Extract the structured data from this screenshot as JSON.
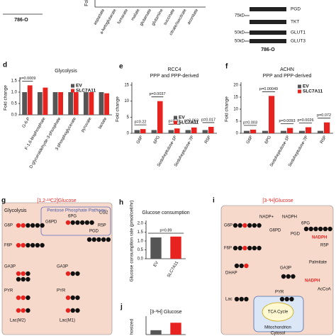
{
  "top": {
    "cell_line": "786-O",
    "ylabel_fragment": "Fol",
    "metabolites": [
      "aspartate",
      "a-ketoglutarate",
      "fumarate",
      "malate",
      "glutamate",
      "glutamine",
      "succinate",
      "citrate/isocitrate",
      "aconitate"
    ]
  },
  "blot": {
    "proteins": [
      "PGD",
      "TKT",
      "GLUT1",
      "GLUT3"
    ],
    "markers": [
      "75kD",
      "50kD",
      "50kD"
    ],
    "cell_line": "786-O"
  },
  "chart_data": [
    {
      "type": "bar",
      "panel": "d",
      "title": "Glycolysis",
      "ylabel": "Fold change",
      "categories": [
        "G-6-P",
        "F-1,6-bisphosphate",
        "D-glyceraldehyde-3-phosphate",
        "3-phosphoglycerate",
        "pyruvate",
        "lactate"
      ],
      "series": [
        {
          "name": "EV",
          "color": "#555555",
          "values": [
            1,
            1,
            1,
            1,
            1,
            1
          ]
        },
        {
          "name": "SLC7A11",
          "color": "#e8231f",
          "values": [
            1.3,
            1.2,
            1.0,
            1.0,
            1.0,
            0.95
          ]
        }
      ],
      "annotations": [
        "p=0.0009",
        null,
        null,
        null,
        null,
        null
      ],
      "ylim": [
        0,
        1.5
      ],
      "yticks": [
        {
          "value": 0,
          "label": "0.0"
        },
        0.5,
        {
          "value": 1,
          "label": "1.0"
        },
        1.5
      ],
      "legend": "upper right"
    },
    {
      "type": "bar",
      "panel": "e",
      "title": "RCC4",
      "subtitle": "PPP and PPP-derived",
      "ylabel": "Fold change",
      "categories": [
        "G6P",
        "6PG",
        "Sedoheptulose-1P",
        "Sedoheptulose-7P",
        "R5P"
      ],
      "series": [
        {
          "name": "EV",
          "color": "#555555",
          "values": [
            1,
            1,
            1,
            1,
            1
          ]
        },
        {
          "name": "SLC7A11",
          "color": "#e8231f",
          "values": [
            1.3,
            10,
            1.5,
            1.8,
            2.0
          ]
        }
      ],
      "annotations": [
        "p=0.22",
        "p=0.0037",
        "p=0.31",
        "p=0.063",
        "p=0.017"
      ],
      "ylim": [
        0,
        15
      ],
      "yticks": [
        0,
        5,
        10,
        15
      ],
      "legend": "upper right"
    },
    {
      "type": "bar",
      "panel": "f",
      "title": "ACHN",
      "subtitle": "PPP and PPP-derived",
      "ylabel": "Fold change",
      "categories": [
        "G6P",
        "6PG",
        "Sedoheptulose-1P",
        "Sedoheptulose-7P",
        "R5P"
      ],
      "series": [
        {
          "name": "EV",
          "color": "#555555",
          "values": [
            1,
            1,
            1,
            1,
            1
          ]
        },
        {
          "name": "SLC7A11",
          "color": "#e8231f",
          "values": [
            1.5,
            15.5,
            2.2,
            2.5,
            4.5
          ]
        }
      ],
      "annotations": [
        "p=0.003",
        "p=0.00049",
        "p=0.0093",
        "p=0.0026",
        "p=0.072"
      ],
      "ylim": [
        0,
        20
      ],
      "yticks": [
        0,
        5,
        10,
        15,
        20
      ],
      "legend": "upper right"
    },
    {
      "type": "bar",
      "panel": "h",
      "title": "Glucose consumption",
      "ylabel": "Glucose consumption rate (pmol/cell/hr)",
      "categories": [
        "EV",
        "SLC7A11"
      ],
      "values": [
        1.2,
        1.25
      ],
      "colors": [
        "#555555",
        "#e8231f"
      ],
      "annotations": [
        "p=0.89",
        null
      ],
      "ylim": [
        0,
        2
      ],
      "yticks": [
        {
          "value": 0,
          "label": "0.0"
        },
        0.5,
        {
          "value": 1,
          "label": "1.0"
        },
        1.5,
        {
          "value": 2,
          "label": "2.0"
        }
      ]
    },
    {
      "type": "bar",
      "panel": "j",
      "title": "[3-³H] Glucose",
      "ylabel": "hosized",
      "categories": [
        null,
        null
      ],
      "values": [
        7,
        19
      ],
      "colors": [
        "#555555",
        "#e8231f"
      ],
      "ylim": [
        0,
        25
      ]
    }
  ],
  "diagram_g": {
    "panel": "g",
    "title": "[1,2-¹³C2]Glucose",
    "box_title": "Pentose Phosphate Pathway",
    "labels": [
      "Glycolysis",
      "G6P",
      "6PG",
      "R5P",
      "G6PD",
      "PGD",
      "CO2",
      "F6P",
      "GA3P",
      "GA3P",
      "PYR",
      "PYR",
      "Lac(M2)",
      "Lac(M1)"
    ]
  },
  "diagram_i": {
    "panel": "i",
    "title": "[3-³H]Glucose",
    "labels": [
      "G6P",
      "NADP+",
      "NADPH",
      "G6PD",
      "6PG",
      "PGD",
      "NADPH",
      "R5P",
      "F6P",
      "DHAP",
      "GA3P",
      "Palmitate",
      "NADPH",
      "AcCoA",
      "Lac",
      "PYR",
      "TCA Cycle",
      "Mitochondrion",
      "Cytosol"
    ]
  }
}
